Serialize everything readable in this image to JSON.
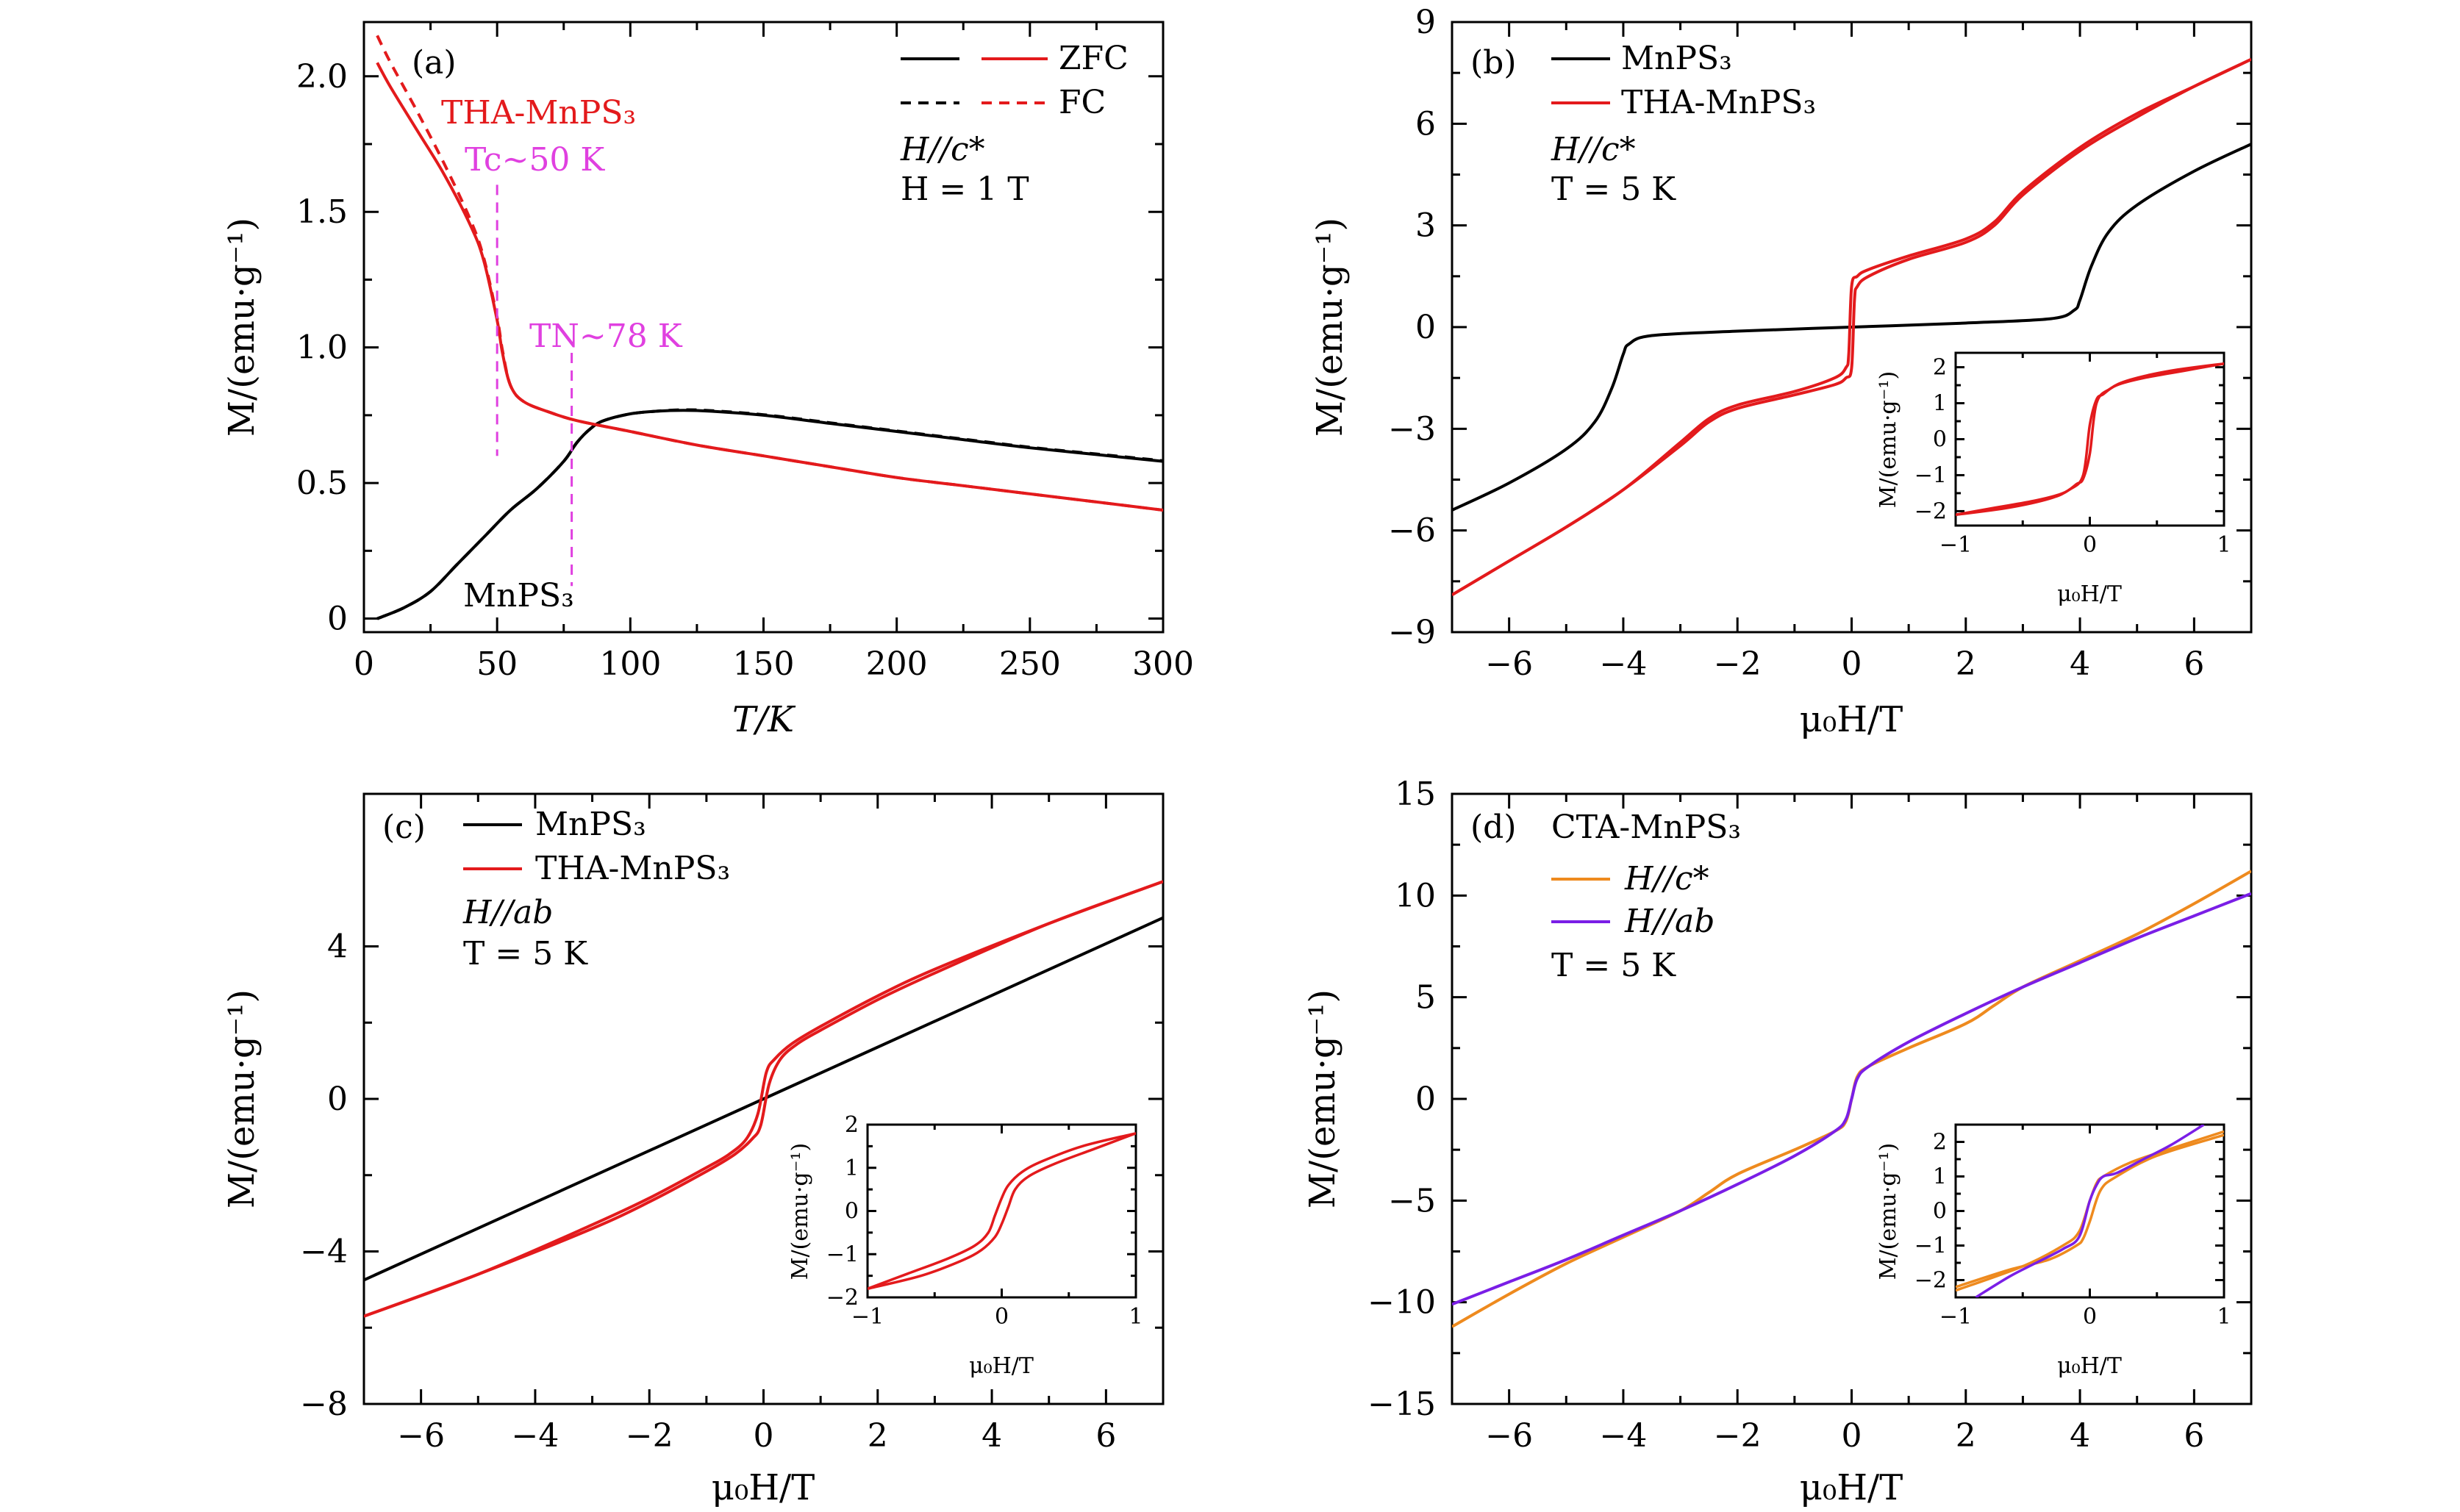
{
  "colors": {
    "black": "#000000",
    "red": "#e31a1c",
    "magenta": "#e040e0",
    "orange": "#ee8a1e",
    "purple": "#7a1ee6"
  },
  "chart_data": [
    {
      "id": "a",
      "type": "line",
      "panel_label": "(a)",
      "xlabel": "T/K",
      "ylabel": "M/(emu·g⁻¹)",
      "xlim": [
        0,
        300
      ],
      "ylim": [
        -0.05,
        2.2
      ],
      "xticks": [
        0,
        50,
        100,
        150,
        200,
        250,
        300
      ],
      "yticks": [
        0,
        0.5,
        1.0,
        1.5,
        2.0
      ],
      "ytick_labels": [
        "0",
        "0.5",
        "1.0",
        "1.5",
        "2.0"
      ],
      "legend": {
        "entries": [
          "ZFC",
          "FC"
        ],
        "placement": "top-right"
      },
      "texts": [
        "H//c*",
        "H = 1 T"
      ],
      "annotations": [
        {
          "text": "THA-MnPS₃",
          "color": "red"
        },
        {
          "text": "Tc~50 K",
          "color": "magenta",
          "x_marker": 50
        },
        {
          "text": "TN~78 K",
          "color": "magenta",
          "x_marker": 78
        },
        {
          "text": "MnPS₃",
          "color": "black"
        }
      ],
      "series": [
        {
          "name": "MnPS₃ ZFC",
          "color": "black",
          "dash": "solid",
          "x": [
            5,
            15,
            25,
            35,
            45,
            55,
            65,
            75,
            80,
            85,
            90,
            100,
            110,
            120,
            130,
            150,
            175,
            200,
            225,
            250,
            275,
            300
          ],
          "y": [
            0.0,
            0.04,
            0.1,
            0.2,
            0.3,
            0.4,
            0.48,
            0.58,
            0.65,
            0.7,
            0.73,
            0.755,
            0.765,
            0.768,
            0.765,
            0.75,
            0.72,
            0.69,
            0.66,
            0.63,
            0.605,
            0.58
          ]
        },
        {
          "name": "MnPS₃ FC",
          "color": "black",
          "dash": "dashed",
          "x": [
            5,
            15,
            25,
            35,
            45,
            55,
            65,
            75,
            80,
            85,
            90,
            100,
            110,
            120,
            130,
            150,
            175,
            200,
            225,
            250,
            275,
            300
          ],
          "y": [
            0.0,
            0.04,
            0.1,
            0.2,
            0.3,
            0.4,
            0.48,
            0.58,
            0.65,
            0.7,
            0.73,
            0.755,
            0.765,
            0.77,
            0.767,
            0.752,
            0.722,
            0.692,
            0.662,
            0.632,
            0.607,
            0.582
          ]
        },
        {
          "name": "THA-MnPS₃ ZFC",
          "color": "red",
          "dash": "solid",
          "x": [
            5,
            10,
            20,
            30,
            40,
            45,
            50,
            52,
            55,
            60,
            70,
            80,
            100,
            125,
            150,
            175,
            200,
            225,
            250,
            275,
            300
          ],
          "y": [
            2.05,
            1.96,
            1.8,
            1.64,
            1.45,
            1.32,
            1.1,
            0.98,
            0.86,
            0.8,
            0.76,
            0.73,
            0.69,
            0.64,
            0.6,
            0.56,
            0.52,
            0.49,
            0.46,
            0.43,
            0.4
          ]
        },
        {
          "name": "THA-MnPS₃ FC",
          "color": "red",
          "dash": "dashed",
          "x": [
            5,
            10,
            20,
            30,
            40,
            45,
            50,
            52,
            55,
            60,
            70,
            80,
            100,
            125,
            150,
            175,
            200,
            225,
            250,
            275,
            300
          ],
          "y": [
            2.15,
            2.05,
            1.87,
            1.68,
            1.47,
            1.33,
            1.11,
            0.99,
            0.86,
            0.8,
            0.76,
            0.73,
            0.69,
            0.64,
            0.6,
            0.56,
            0.52,
            0.49,
            0.46,
            0.43,
            0.4
          ]
        }
      ]
    },
    {
      "id": "b",
      "type": "line",
      "panel_label": "(b)",
      "xlabel": "μ₀H/T",
      "ylabel": "M/(emu·g⁻¹)",
      "xlim": [
        -7,
        7
      ],
      "ylim": [
        -9,
        9
      ],
      "xticks": [
        -6,
        -4,
        -2,
        0,
        2,
        4,
        6
      ],
      "yticks": [
        -9,
        -6,
        -3,
        0,
        3,
        6,
        9
      ],
      "legend": {
        "entries": [
          "MnPS₃",
          "THA-MnPS₃"
        ],
        "placement": "top-left"
      },
      "texts": [
        "H//c*",
        "T = 5 K"
      ],
      "series": [
        {
          "name": "MnPS₃",
          "color": "black",
          "x": [
            -7,
            -6,
            -5,
            -4.5,
            -4.2,
            -4.0,
            -3.9,
            -3.5,
            -2,
            0,
            2,
            3.5,
            3.9,
            4.0,
            4.2,
            4.5,
            5,
            6,
            7
          ],
          "y": [
            -5.4,
            -4.6,
            -3.6,
            -2.8,
            -1.8,
            -0.8,
            -0.5,
            -0.25,
            -0.12,
            0,
            0.12,
            0.25,
            0.5,
            0.8,
            1.8,
            2.8,
            3.6,
            4.6,
            5.4
          ]
        },
        {
          "name": "THA-MnPS₃ (up)",
          "color": "red",
          "x": [
            -7,
            -6,
            -5,
            -4,
            -3,
            -2.5,
            -2,
            -1,
            -0.3,
            -0.1,
            0.0,
            0.05,
            0.1,
            0.3,
            1,
            2,
            2.5,
            3,
            4,
            5,
            6,
            7
          ],
          "y": [
            -7.9,
            -6.9,
            -5.9,
            -4.8,
            -3.5,
            -2.8,
            -2.4,
            -2.0,
            -1.7,
            -1.5,
            -1.2,
            0.8,
            1.2,
            1.5,
            2.0,
            2.5,
            3.0,
            3.9,
            5.2,
            6.2,
            7.1,
            7.9
          ]
        },
        {
          "name": "THA-MnPS₃ (down)",
          "color": "red",
          "x": [
            -7,
            -6,
            -5,
            -4,
            -3,
            -2.5,
            -2,
            -1,
            -0.3,
            -0.1,
            -0.05,
            0.0,
            0.1,
            0.3,
            1,
            2,
            2.5,
            3,
            4,
            5,
            6,
            7
          ],
          "y": [
            -7.9,
            -6.9,
            -5.9,
            -4.8,
            -3.4,
            -2.7,
            -2.3,
            -1.9,
            -1.5,
            -1.2,
            -0.8,
            1.2,
            1.5,
            1.7,
            2.1,
            2.6,
            3.1,
            4.0,
            5.3,
            6.3,
            7.1,
            7.9
          ]
        }
      ],
      "inset": {
        "xlabel": "μ₀H/T",
        "ylabel": "M/(emu·g⁻¹)",
        "xlim": [
          -1,
          1
        ],
        "ylim": [
          -2.4,
          2.4
        ],
        "xticks": [
          -1,
          0,
          1
        ],
        "yticks": [
          -2,
          -1,
          0,
          1,
          2
        ],
        "series": [
          {
            "color": "red",
            "x": [
              -1,
              -0.6,
              -0.3,
              -0.15,
              -0.05,
              0.0,
              0.05,
              0.1,
              0.2,
              0.4,
              0.7,
              1
            ],
            "y": [
              -2.1,
              -1.9,
              -1.65,
              -1.4,
              -1.0,
              0.4,
              1.1,
              1.25,
              1.5,
              1.7,
              1.9,
              2.1
            ]
          },
          {
            "color": "red",
            "x": [
              -1,
              -0.7,
              -0.4,
              -0.2,
              -0.1,
              -0.05,
              0.0,
              0.05,
              0.15,
              0.3,
              0.6,
              1
            ],
            "y": [
              -2.1,
              -1.9,
              -1.7,
              -1.5,
              -1.25,
              -1.1,
              -0.4,
              1.0,
              1.4,
              1.65,
              1.9,
              2.1
            ]
          }
        ]
      }
    },
    {
      "id": "c",
      "type": "line",
      "panel_label": "(c)",
      "xlabel": "μ₀H/T",
      "ylabel": "M/(emu·g⁻¹)",
      "xlim": [
        -7,
        7
      ],
      "ylim": [
        -8,
        8
      ],
      "xticks": [
        -6,
        -4,
        -2,
        0,
        2,
        4,
        6
      ],
      "yticks": [
        -8,
        -4,
        0,
        4
      ],
      "legend": {
        "entries": [
          "MnPS₃",
          "THA-MnPS₃"
        ],
        "placement": "top-left"
      },
      "texts": [
        "H//ab",
        "T = 5 K"
      ],
      "series": [
        {
          "name": "MnPS₃",
          "color": "black",
          "x": [
            -7,
            7
          ],
          "y": [
            -4.75,
            4.75
          ]
        },
        {
          "name": "THA-MnPS₃ (up)",
          "color": "red",
          "x": [
            -7,
            -5,
            -3,
            -2,
            -1,
            -0.5,
            -0.2,
            -0.05,
            0.1,
            0.3,
            0.6,
            1,
            2,
            3,
            5,
            7
          ],
          "y": [
            -5.7,
            -4.6,
            -3.4,
            -2.7,
            -1.9,
            -1.45,
            -1.05,
            -0.7,
            0.4,
            1.05,
            1.45,
            1.8,
            2.6,
            3.3,
            4.6,
            5.7
          ]
        },
        {
          "name": "THA-MnPS₃ (down)",
          "color": "red",
          "x": [
            -7,
            -5,
            -3,
            -2,
            -1,
            -0.6,
            -0.3,
            -0.1,
            0.05,
            0.2,
            0.5,
            1,
            2,
            3,
            5,
            7
          ],
          "y": [
            -5.7,
            -4.6,
            -3.3,
            -2.6,
            -1.8,
            -1.45,
            -1.05,
            -0.4,
            0.7,
            1.05,
            1.45,
            1.9,
            2.7,
            3.4,
            4.6,
            5.7
          ]
        }
      ],
      "inset": {
        "xlabel": "μ₀H/T",
        "ylabel": "M/(emu·g⁻¹)",
        "xlim": [
          -1,
          1
        ],
        "ylim": [
          -2,
          2
        ],
        "xticks": [
          -1,
          0,
          1
        ],
        "yticks": [
          -2,
          -1,
          0,
          1,
          2
        ],
        "series": [
          {
            "color": "red",
            "x": [
              -1,
              -0.6,
              -0.3,
              -0.15,
              -0.05,
              0.0,
              0.05,
              0.1,
              0.2,
              0.4,
              0.7,
              1
            ],
            "y": [
              -1.8,
              -1.5,
              -1.15,
              -0.9,
              -0.6,
              -0.3,
              0.1,
              0.5,
              0.8,
              1.1,
              1.45,
              1.8
            ]
          },
          {
            "color": "red",
            "x": [
              -1,
              -0.7,
              -0.4,
              -0.2,
              -0.1,
              -0.05,
              0.0,
              0.05,
              0.15,
              0.3,
              0.6,
              1
            ],
            "y": [
              -1.8,
              -1.45,
              -1.1,
              -0.8,
              -0.5,
              -0.1,
              0.3,
              0.6,
              0.9,
              1.15,
              1.5,
              1.8
            ]
          }
        ]
      }
    },
    {
      "id": "d",
      "type": "line",
      "panel_label": "(d)",
      "title": "CTA-MnPS₃",
      "xlabel": "μ₀H/T",
      "ylabel": "M/(emu·g⁻¹)",
      "xlim": [
        -7,
        7
      ],
      "ylim": [
        -15,
        15
      ],
      "xticks": [
        -6,
        -4,
        -2,
        0,
        2,
        4,
        6
      ],
      "yticks": [
        -15,
        -10,
        -5,
        0,
        5,
        10,
        15
      ],
      "legend": {
        "entries": [
          "H//c*",
          "H//ab"
        ],
        "placement": "top-left"
      },
      "texts": [
        "T = 5 K"
      ],
      "series": [
        {
          "name": "H//c*",
          "color": "orange",
          "x": [
            -7,
            -6,
            -5,
            -4,
            -3,
            -2.5,
            -2,
            -1,
            -0.3,
            -0.1,
            0.0,
            0.1,
            0.3,
            1,
            2,
            2.5,
            3,
            4,
            5,
            6,
            7
          ],
          "y": [
            -11.2,
            -9.6,
            -8.1,
            -6.8,
            -5.5,
            -4.6,
            -3.7,
            -2.5,
            -1.6,
            -1.1,
            0.0,
            1.1,
            1.6,
            2.5,
            3.7,
            4.6,
            5.5,
            6.8,
            8.1,
            9.6,
            11.2
          ]
        },
        {
          "name": "H//ab",
          "color": "purple",
          "x": [
            -7,
            -6,
            -5,
            -4,
            -3,
            -2,
            -1,
            -0.3,
            -0.1,
            0.0,
            0.1,
            0.3,
            1,
            2,
            3,
            4,
            5,
            6,
            7
          ],
          "y": [
            -10.1,
            -9.0,
            -7.9,
            -6.7,
            -5.5,
            -4.2,
            -2.8,
            -1.6,
            -1.0,
            0.0,
            1.0,
            1.6,
            2.8,
            4.2,
            5.5,
            6.7,
            7.9,
            9.0,
            10.1
          ]
        }
      ],
      "inset": {
        "xlabel": "μ₀H/T",
        "ylabel": "M/(emu·g⁻¹)",
        "xlim": [
          -1,
          1
        ],
        "ylim": [
          -2.5,
          2.5
        ],
        "xticks": [
          -1,
          0,
          1
        ],
        "yticks": [
          -2,
          -1,
          0,
          1,
          2
        ],
        "series": [
          {
            "color": "orange",
            "x": [
              -1,
              -0.5,
              -0.2,
              -0.08,
              0.0,
              0.05,
              0.1,
              0.3,
              0.6,
              1
            ],
            "y": [
              -2.3,
              -1.6,
              -1.0,
              -0.6,
              0.3,
              0.8,
              1.0,
              1.4,
              1.8,
              2.3
            ]
          },
          {
            "color": "orange",
            "x": [
              -1,
              -0.6,
              -0.3,
              -0.1,
              -0.05,
              0.0,
              0.08,
              0.2,
              0.5,
              1
            ],
            "y": [
              -2.2,
              -1.7,
              -1.4,
              -1.0,
              -0.8,
              -0.3,
              0.6,
              1.0,
              1.6,
              2.2
            ]
          },
          {
            "color": "purple",
            "x": [
              -0.85,
              -0.6,
              -0.4,
              -0.2,
              -0.08,
              0.0,
              0.05,
              0.1,
              0.2,
              0.4,
              0.6,
              0.85
            ],
            "y": [
              -2.5,
              -1.9,
              -1.5,
              -1.1,
              -0.75,
              0.3,
              0.75,
              1.0,
              1.1,
              1.5,
              1.9,
              2.5
            ]
          }
        ]
      }
    }
  ]
}
